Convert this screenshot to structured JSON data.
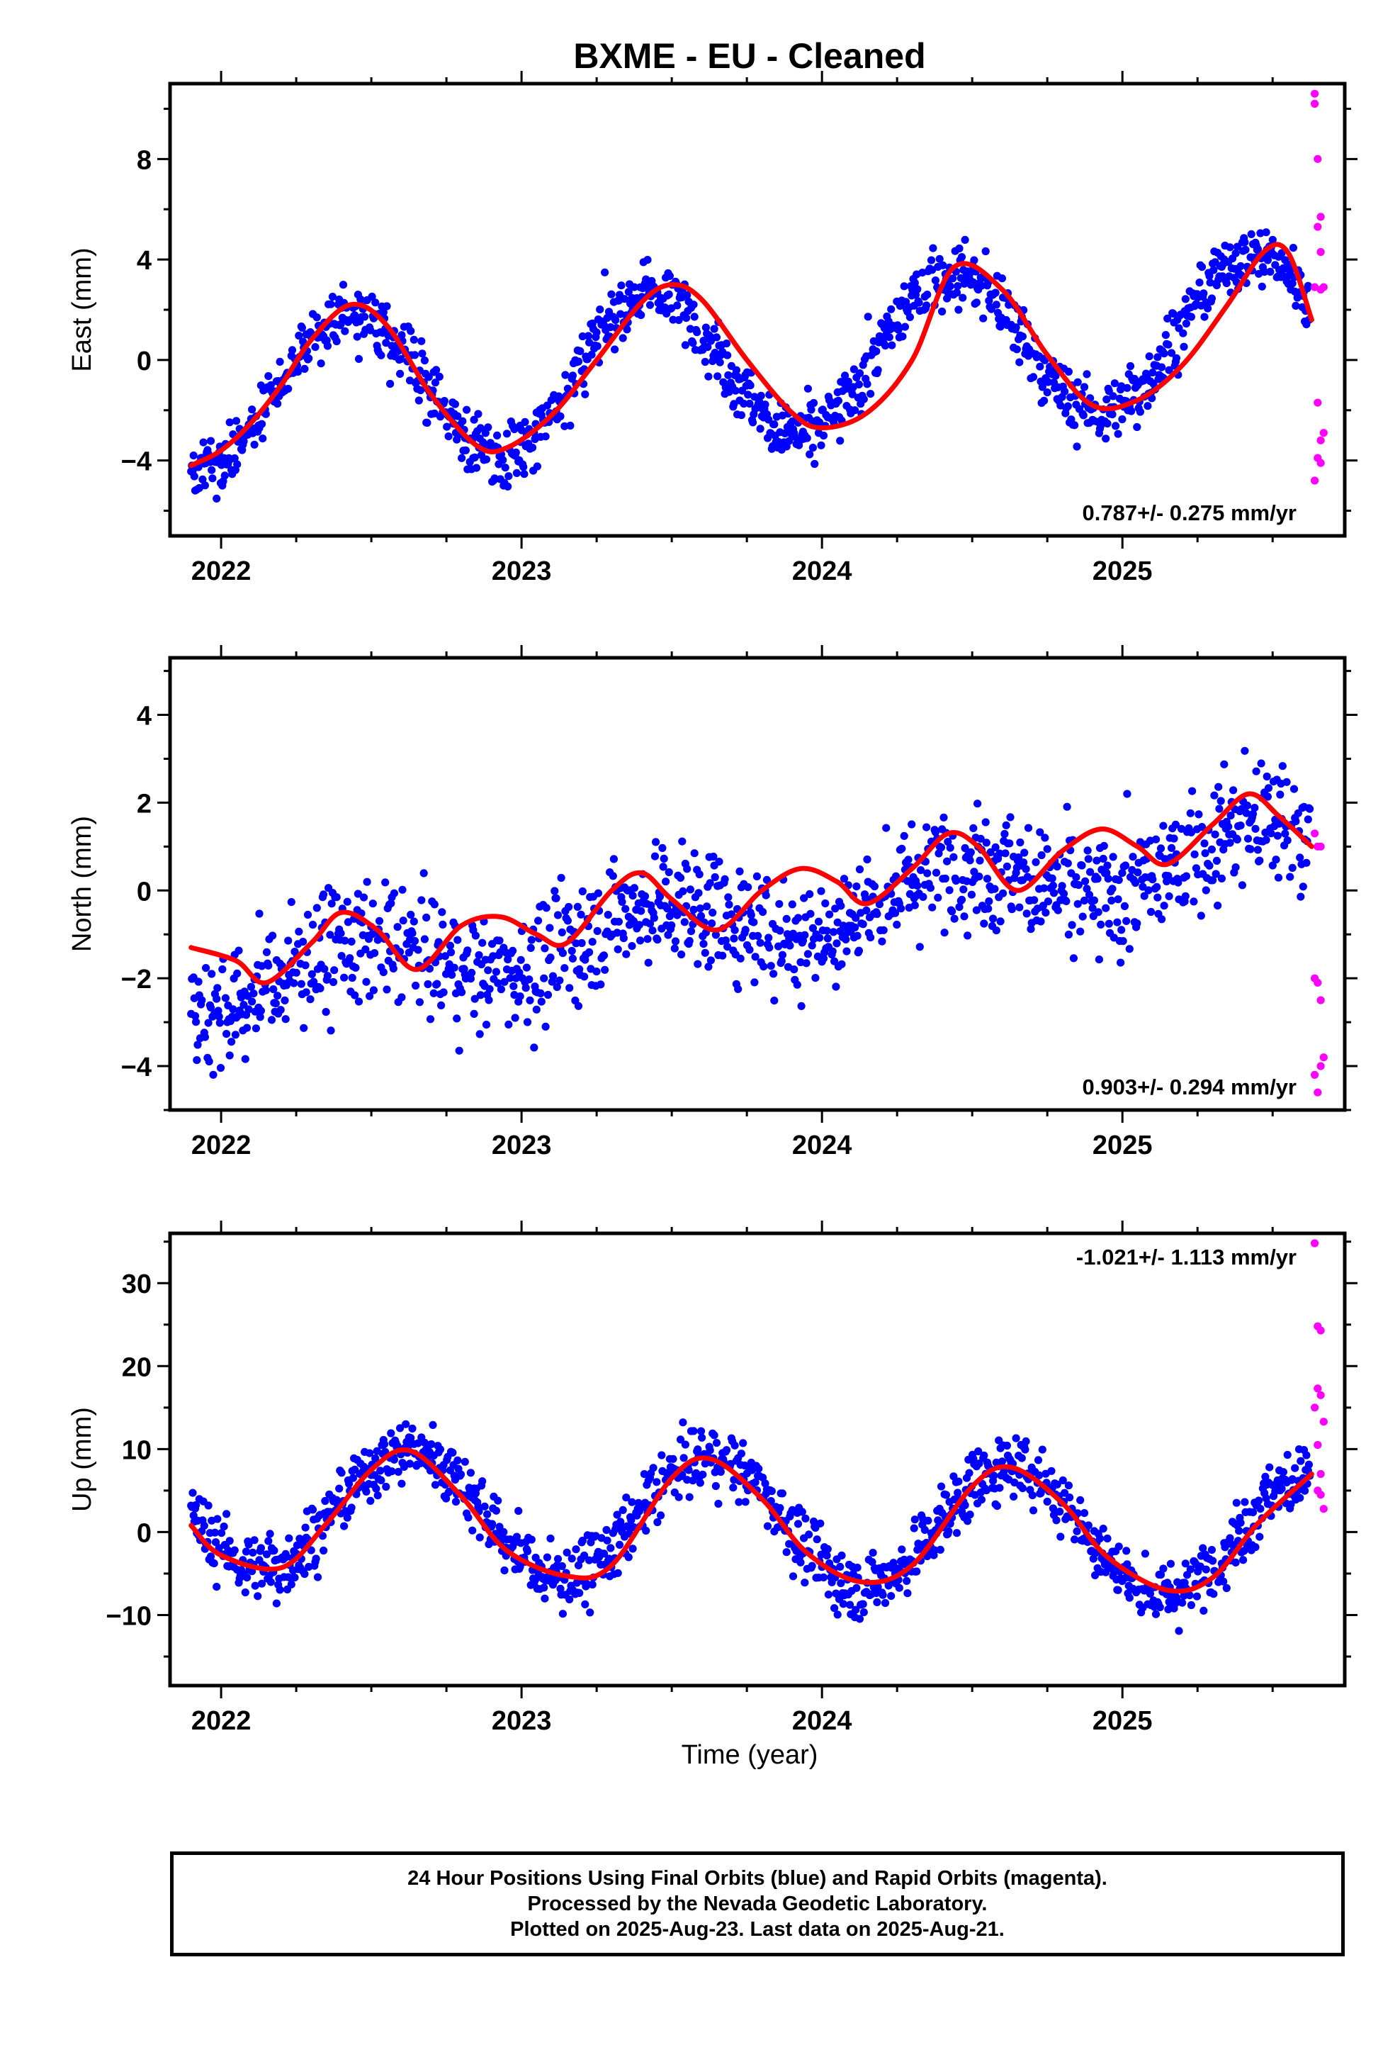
{
  "chart_data": {
    "type": "scatter",
    "title": "BXME  - EU - Cleaned",
    "xlabel": "Time (year)",
    "x_ticks": [
      "2022",
      "2023",
      "2024",
      "2025"
    ],
    "xlim": [
      2021.83,
      2025.74
    ],
    "colors": {
      "final": "#0000ff",
      "rapid": "#ff00ff",
      "model": "#ff0000",
      "frame": "#000000"
    },
    "legend_note": "24 Hour Positions Using Final Orbits (blue) and Rapid Orbits (magenta).",
    "panels": [
      {
        "name": "east",
        "ylabel": "East (mm)",
        "ylim": [
          -7,
          11
        ],
        "yticks": [
          -4,
          0,
          4,
          8
        ],
        "rate_label": "0.787+/- 0.275 mm/yr",
        "rate_position": "bottom-right",
        "model": {
          "x": [
            2021.9,
            2022.0,
            2022.1,
            2022.2,
            2022.3,
            2022.43,
            2022.55,
            2022.7,
            2022.85,
            2022.95,
            2023.1,
            2023.25,
            2023.4,
            2023.5,
            2023.6,
            2023.75,
            2023.9,
            2024.0,
            2024.15,
            2024.3,
            2024.44,
            2024.6,
            2024.75,
            2024.9,
            2025.05,
            2025.2,
            2025.35,
            2025.47,
            2025.55,
            2025.63
          ],
          "y": [
            -4.2,
            -3.6,
            -2.5,
            -1.0,
            0.8,
            2.2,
            1.4,
            -1.4,
            -3.4,
            -3.5,
            -2.2,
            0.0,
            2.3,
            3.0,
            2.4,
            0.0,
            -2.1,
            -2.7,
            -2.1,
            0.0,
            3.7,
            2.8,
            0.2,
            -1.8,
            -1.6,
            -0.2,
            2.2,
            4.3,
            4.3,
            1.6
          ]
        },
        "final_seasonal": {
          "offset": -0.1,
          "amplitude": 3.0,
          "rate": 0.787,
          "phase_year": 2022.43,
          "noise": 1.0
        },
        "rapid_points": {
          "x": [
            2025.64,
            2025.64,
            2025.65,
            2025.66,
            2025.65,
            2025.66,
            2025.67,
            2025.64,
            2025.66,
            2025.65,
            2025.67,
            2025.66,
            2025.65,
            2025.66,
            2025.64
          ],
          "y": [
            10.6,
            10.2,
            8.0,
            5.7,
            5.3,
            4.3,
            2.9,
            2.9,
            2.8,
            -1.7,
            -2.9,
            -3.2,
            -3.9,
            -4.1,
            -4.8
          ]
        }
      },
      {
        "name": "north",
        "ylabel": "North (mm)",
        "ylim": [
          -5,
          5.3
        ],
        "yticks": [
          -4,
          -2,
          0,
          2,
          4
        ],
        "rate_label": "0.903+/- 0.294 mm/yr",
        "rate_position": "bottom-right",
        "model": {
          "x": [
            2021.9,
            2022.05,
            2022.15,
            2022.3,
            2022.4,
            2022.52,
            2022.65,
            2022.8,
            2022.93,
            2023.05,
            2023.15,
            2023.3,
            2023.4,
            2023.5,
            2023.65,
            2023.8,
            2023.93,
            2024.05,
            2024.15,
            2024.3,
            2024.42,
            2024.52,
            2024.65,
            2024.8,
            2024.93,
            2025.05,
            2025.15,
            2025.3,
            2025.42,
            2025.52,
            2025.63
          ],
          "y": [
            -1.3,
            -1.6,
            -2.1,
            -1.2,
            -0.5,
            -0.9,
            -1.8,
            -0.8,
            -0.6,
            -1.0,
            -1.2,
            0.0,
            0.4,
            -0.2,
            -0.9,
            0.0,
            0.5,
            0.2,
            -0.3,
            0.5,
            1.3,
            1.0,
            0.0,
            0.9,
            1.4,
            1.0,
            0.6,
            1.5,
            2.2,
            1.7,
            1.0
          ]
        },
        "final_seasonal": {
          "offset": -0.6,
          "amplitude": 0.6,
          "rate": 0.903,
          "phase_year": 2022.45,
          "noise": 1.1
        },
        "rapid_points": {
          "x": [
            2025.64,
            2025.65,
            2025.66,
            2025.64,
            2025.65,
            2025.66,
            2025.67,
            2025.64,
            2025.66,
            2025.65
          ],
          "y": [
            1.3,
            1.0,
            1.0,
            -2.0,
            -2.1,
            -2.5,
            -3.8,
            -4.2,
            -4.0,
            -4.6
          ]
        }
      },
      {
        "name": "up",
        "ylabel": "Up (mm)",
        "ylim": [
          -18.5,
          36
        ],
        "yticks": [
          -10,
          0,
          10,
          20,
          30
        ],
        "rate_label": "-1.021+/- 1.113 mm/yr",
        "rate_position": "top-right",
        "model": {
          "x": [
            2021.9,
            2022.0,
            2022.2,
            2022.35,
            2022.5,
            2022.63,
            2022.8,
            2022.95,
            2023.15,
            2023.3,
            2023.5,
            2023.63,
            2023.8,
            2023.95,
            2024.13,
            2024.3,
            2024.5,
            2024.63,
            2024.8,
            2024.95,
            2025.15,
            2025.3,
            2025.45,
            2025.63
          ],
          "y": [
            0.8,
            -2.8,
            -4.3,
            1.0,
            7.5,
            9.8,
            4.3,
            -2.2,
            -5.3,
            -4.0,
            6.5,
            8.8,
            4.0,
            -2.5,
            -6.0,
            -4.0,
            5.5,
            7.8,
            3.5,
            -3.0,
            -7.0,
            -5.5,
            1.0,
            7.0
          ]
        },
        "final_seasonal": {
          "offset": 1.3,
          "amplitude": 7.5,
          "rate": -1.021,
          "phase_year": 2022.63,
          "noise": 3.2
        },
        "rapid_points": {
          "x": [
            2025.64,
            2025.65,
            2025.66,
            2025.65,
            2025.66,
            2025.64,
            2025.67,
            2025.65,
            2025.66,
            2025.65,
            2025.66,
            2025.67
          ],
          "y": [
            34.8,
            24.8,
            24.3,
            17.3,
            16.5,
            15.0,
            13.3,
            10.5,
            7.0,
            5.0,
            4.5,
            2.8
          ]
        }
      }
    ]
  },
  "footer": {
    "line1": "24 Hour Positions Using Final Orbits (blue) and Rapid Orbits (magenta).",
    "line2": "Processed by the Nevada Geodetic Laboratory.",
    "line3": "Plotted on 2025-Aug-23. Last data on 2025-Aug-21."
  }
}
